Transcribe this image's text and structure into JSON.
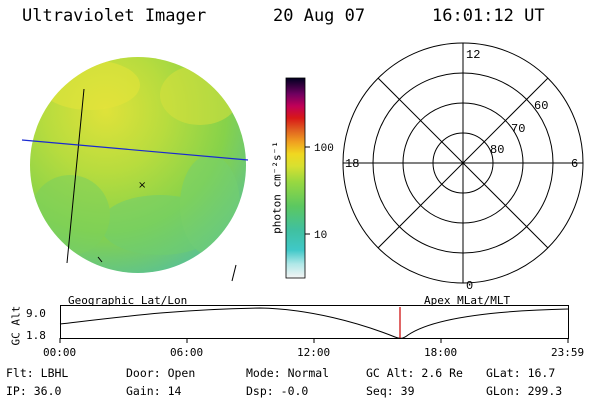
{
  "header": {
    "title": "Ultraviolet Imager",
    "date": "20 Aug 07",
    "time": "16:01:12 UT"
  },
  "colorbar": {
    "label": "photon cm⁻²s⁻¹",
    "ticks": [
      "100",
      "10"
    ]
  },
  "polar": {
    "mlt_labels": [
      "12",
      "18",
      "6",
      "0"
    ],
    "lat_labels": [
      "60",
      "70",
      "80"
    ]
  },
  "orbit": {
    "left_label": "Geographic Lat/Lon",
    "right_label": "Apex MLat/MLT",
    "axis_title": "GC Alt",
    "y_ticks": [
      "9.0",
      "1.8"
    ],
    "x_ticks": [
      "00:00",
      "06:00",
      "12:00",
      "18:00",
      "23:59"
    ],
    "current_time_marker": "16:01:12",
    "marker_color": "#cc0000"
  },
  "footer": [
    [
      {
        "k": "Flt:",
        "v": "LBHL"
      },
      {
        "k": "Door:",
        "v": "Open"
      },
      {
        "k": "Mode:",
        "v": "Normal"
      },
      {
        "k": "GC Alt:",
        "v": "2.6 Re"
      },
      {
        "k": "GLat:",
        "v": "16.7"
      }
    ],
    [
      {
        "k": "IP:",
        "v": "36.0"
      },
      {
        "k": "Gain:",
        "v": "14"
      },
      {
        "k": "Dsp:",
        "v": "-0.0"
      },
      {
        "k": "Seq:",
        "v": "39"
      },
      {
        "k": "GLon:",
        "v": "299.3"
      }
    ]
  ],
  "colors": {
    "disk_main": "#8fd444",
    "disk_bright": "#e0e23c",
    "disk_dim": "#55c0a0",
    "grid_blue": "#1a2ad0"
  }
}
